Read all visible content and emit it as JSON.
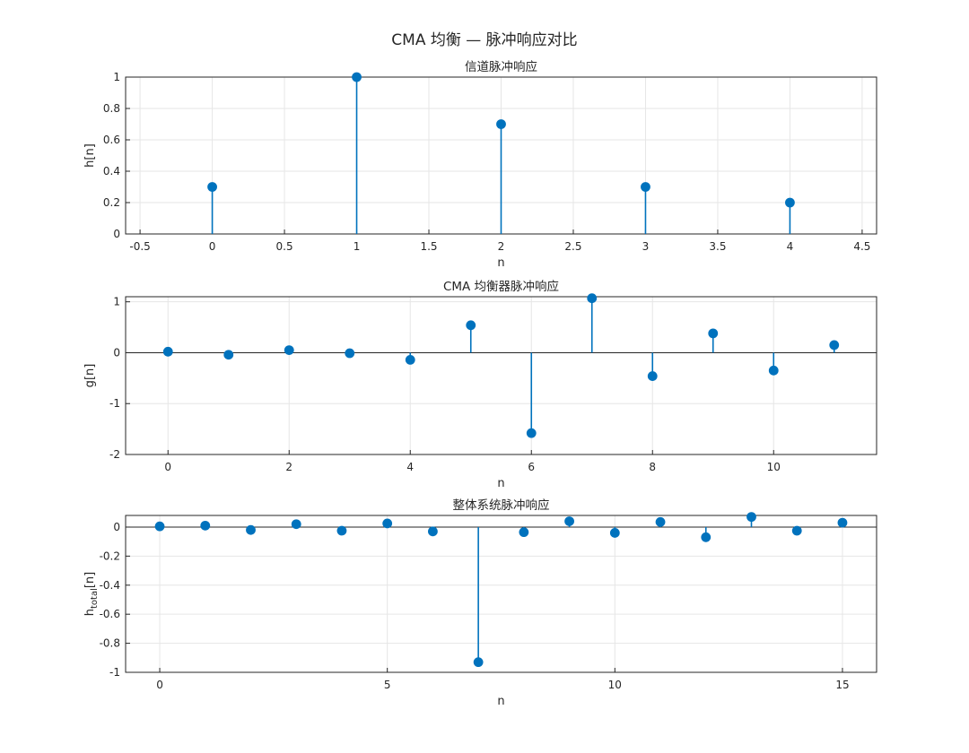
{
  "figure": {
    "title": "CMA 均衡 — 脉冲响应对比"
  },
  "chart_data": [
    {
      "type": "stem",
      "title": "信道脉冲响应",
      "xlabel": "n",
      "ylabel": "h[n]",
      "xlim": [
        -0.6,
        4.6
      ],
      "ylim": [
        0,
        1
      ],
      "xticks": [
        -0.5,
        0,
        0.5,
        1,
        1.5,
        2,
        2.5,
        3,
        3.5,
        4,
        4.5
      ],
      "xticklabels": [
        "-0.5",
        "0",
        "0.5",
        "1",
        "1.5",
        "2",
        "2.5",
        "3",
        "3.5",
        "4",
        "4.5"
      ],
      "yticks": [
        0,
        0.2,
        0.4,
        0.6,
        0.8,
        1
      ],
      "yticklabels": [
        "0",
        "0.2",
        "0.4",
        "0.6",
        "0.8",
        "1"
      ],
      "grid": true,
      "x": [
        0,
        1,
        2,
        3,
        4
      ],
      "y": [
        0.3,
        1.0,
        0.7,
        0.3,
        0.2
      ]
    },
    {
      "type": "stem",
      "title": "CMA 均衡器脉冲响应",
      "xlabel": "n",
      "ylabel": "g[n]",
      "xlim": [
        -0.7,
        11.7
      ],
      "ylim": [
        -2,
        1.1
      ],
      "xticks": [
        0,
        2,
        4,
        6,
        8,
        10
      ],
      "xticklabels": [
        "0",
        "2",
        "4",
        "6",
        "8",
        "10"
      ],
      "yticks": [
        -2,
        -1,
        0,
        1
      ],
      "yticklabels": [
        "-2",
        "-1",
        "0",
        "1"
      ],
      "grid": true,
      "x": [
        0,
        1,
        2,
        3,
        4,
        5,
        6,
        7,
        8,
        9,
        10,
        11
      ],
      "y": [
        0.02,
        -0.04,
        0.05,
        -0.01,
        -0.14,
        0.54,
        -1.58,
        1.07,
        -0.46,
        0.38,
        -0.35,
        0.15
      ]
    },
    {
      "type": "stem",
      "title": "整体系统脉冲响应",
      "xlabel": "n",
      "ylabel": "h",
      "ylabel_subscript": "total",
      "ylabel_suffix": "[n]",
      "xlim": [
        -0.75,
        15.75
      ],
      "ylim": [
        -1,
        0.08
      ],
      "xticks": [
        0,
        5,
        10,
        15
      ],
      "xticklabels": [
        "0",
        "5",
        "10",
        "15"
      ],
      "yticks": [
        -1,
        -0.8,
        -0.6,
        -0.4,
        -0.2,
        0
      ],
      "yticklabels": [
        "-1",
        "-0.8",
        "-0.6",
        "-0.4",
        "-0.2",
        "0"
      ],
      "grid": true,
      "x": [
        0,
        1,
        2,
        3,
        4,
        5,
        6,
        7,
        8,
        9,
        10,
        11,
        12,
        13,
        14,
        15
      ],
      "y": [
        0.005,
        0.01,
        -0.02,
        0.02,
        -0.025,
        0.025,
        -0.03,
        -0.93,
        -0.035,
        0.04,
        -0.04,
        0.035,
        -0.07,
        0.07,
        -0.025,
        0.03
      ]
    }
  ]
}
